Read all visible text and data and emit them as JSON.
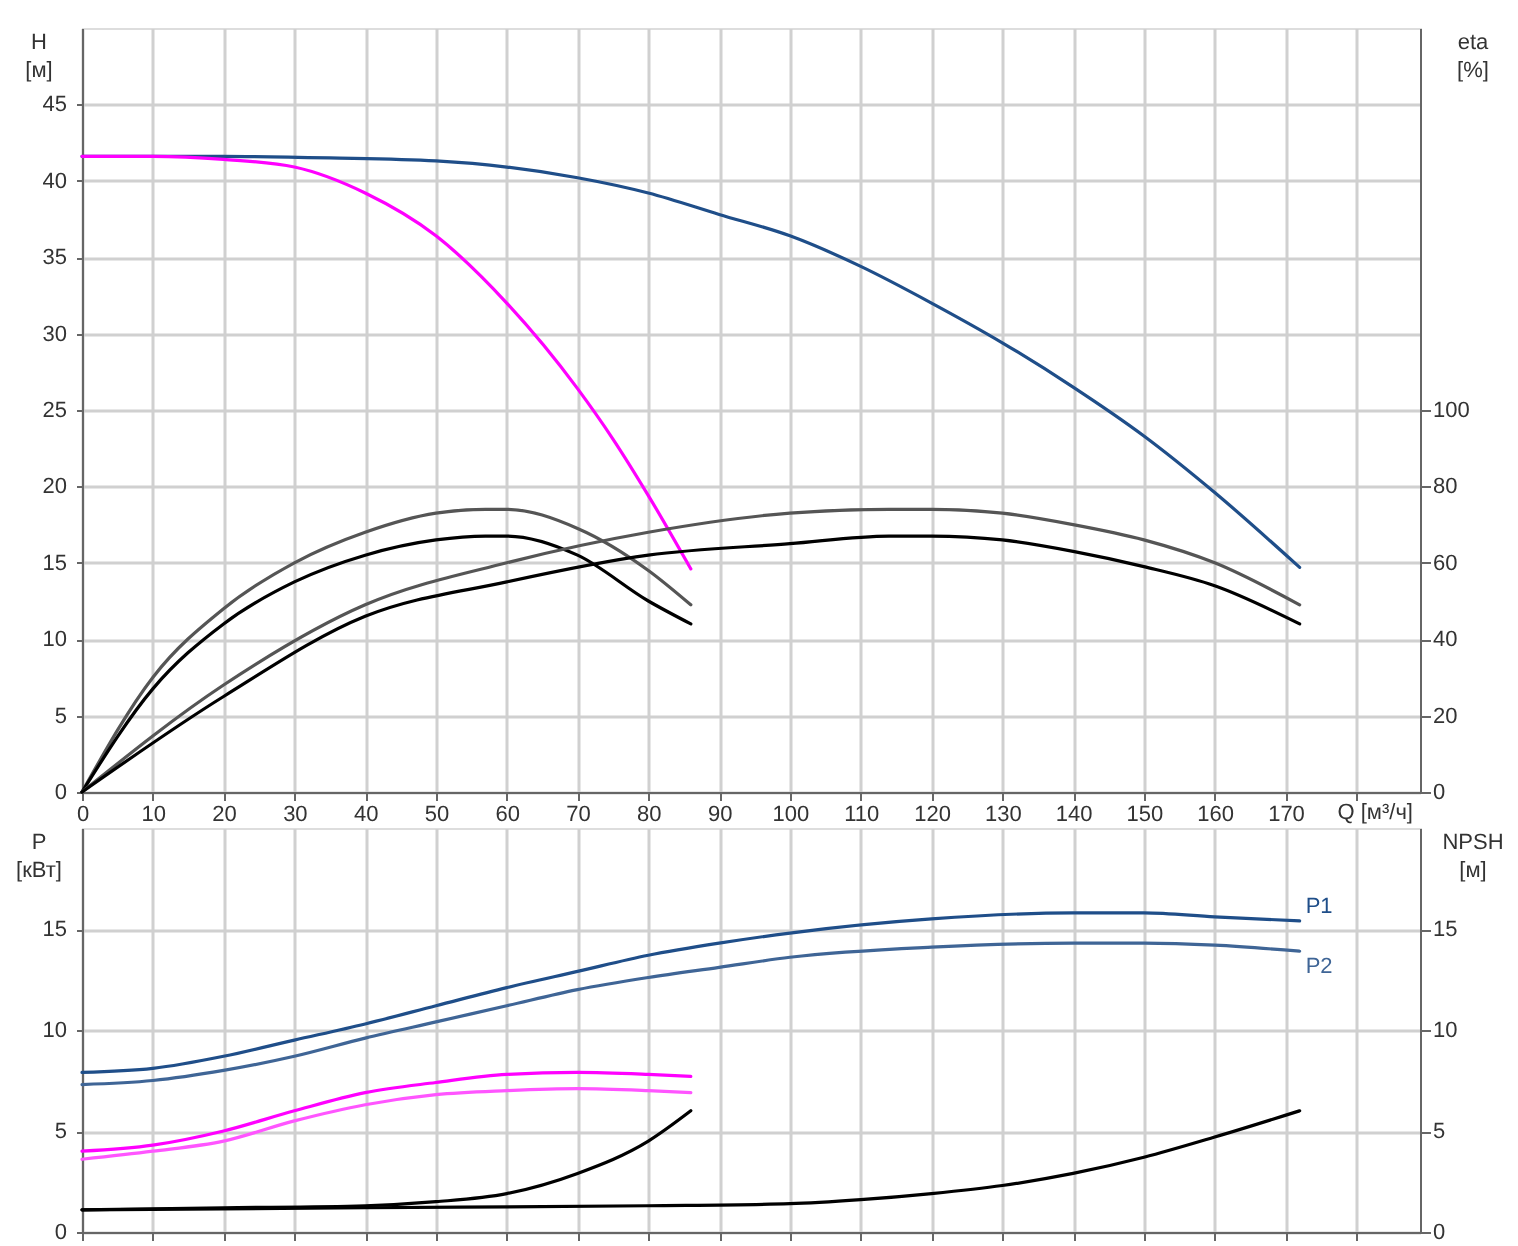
{
  "chart_data": [
    {
      "type": "line",
      "xlabel": "Q [м³/ч]",
      "ylabel": "H [м]",
      "y2label": "eta [%]",
      "xlim": [
        0,
        189
      ],
      "xticks": [
        0,
        10,
        20,
        30,
        40,
        50,
        60,
        70,
        80,
        90,
        100,
        110,
        120,
        130,
        140,
        150,
        160,
        170,
        {
          "value": 180,
          "label": null
        }
      ],
      "ylim": [
        0,
        50
      ],
      "yticks": [
        0,
        5,
        10,
        15,
        20,
        25,
        30,
        35,
        40,
        45
      ],
      "y2lim": [
        0,
        200
      ],
      "y2ticks": [
        0,
        20,
        40,
        60,
        80,
        100
      ],
      "grid": true,
      "series": [
        {
          "color": "#1f4e89",
          "x": [
            0,
            10,
            20,
            35,
            50,
            60,
            70,
            80,
            90,
            100,
            110,
            120,
            130,
            140,
            150,
            160,
            172
          ],
          "values": [
            41.6,
            41.6,
            41.6,
            41.5,
            41.3,
            40.9,
            40.2,
            39.2,
            37.8,
            36.4,
            34.4,
            32.0,
            29.4,
            26.5,
            23.3,
            19.6,
            14.7
          ]
        },
        {
          "color": "#ff00ff",
          "x": [
            0,
            10,
            20,
            30,
            40,
            50,
            60,
            70,
            75,
            80,
            86
          ],
          "values": [
            41.6,
            41.6,
            41.4,
            40.9,
            39.2,
            36.4,
            32.0,
            26.4,
            23.1,
            19.4,
            14.6
          ]
        },
        {
          "color": "#555555",
          "axis": "y2",
          "x": [
            0,
            10,
            20,
            30,
            40,
            50,
            57,
            60,
            70,
            80,
            86
          ],
          "values": [
            0,
            30,
            48,
            60,
            68,
            73,
            74,
            74,
            69,
            58,
            49
          ]
        },
        {
          "color": "#000000",
          "axis": "y2",
          "x": [
            0,
            10,
            20,
            30,
            40,
            50,
            57,
            60,
            70,
            80,
            86
          ],
          "values": [
            0,
            27,
            44,
            55,
            62,
            66,
            67,
            67,
            62,
            50,
            44
          ]
        },
        {
          "color": "#555555",
          "axis": "y2",
          "x": [
            0,
            20,
            40,
            60,
            80,
            100,
            114,
            120,
            130,
            140,
            150,
            160,
            172
          ],
          "values": [
            0,
            28,
            49,
            60,
            68,
            73,
            74,
            74,
            73,
            70,
            66,
            60,
            49
          ]
        },
        {
          "color": "#000000",
          "axis": "y2",
          "x": [
            0,
            20,
            40,
            60,
            80,
            100,
            114,
            120,
            130,
            140,
            150,
            160,
            172
          ],
          "values": [
            0,
            25,
            46,
            55,
            62,
            65,
            67,
            67,
            66,
            63,
            59,
            54,
            44
          ]
        }
      ]
    },
    {
      "type": "line",
      "ylabel": "P [кВт]",
      "y2label": "NPSH [м]",
      "xlim": [
        0,
        189
      ],
      "xticks": [
        0,
        10,
        20,
        30,
        40,
        50,
        60,
        70,
        80,
        90,
        100,
        110,
        120,
        130,
        140,
        150,
        160,
        170,
        {
          "value": 180,
          "label": null
        }
      ],
      "ylim": [
        0,
        20
      ],
      "yticks": [
        0,
        5,
        10,
        15
      ],
      "y2lim": [
        0,
        20
      ],
      "y2ticks": [
        0,
        5,
        10,
        15
      ],
      "grid": true,
      "tick_labels": "y",
      "series": [
        {
          "name": "P1",
          "color": "#1f4e89",
          "x": [
            0,
            10,
            20,
            30,
            40,
            50,
            60,
            70,
            80,
            90,
            100,
            120,
            140,
            150,
            160,
            172
          ],
          "values": [
            7.9,
            8.1,
            8.7,
            9.5,
            10.3,
            11.2,
            12.1,
            12.9,
            13.7,
            14.3,
            14.8,
            15.5,
            15.8,
            15.8,
            15.6,
            15.4
          ]
        },
        {
          "name": "P2",
          "color": "#3f6596",
          "x": [
            0,
            10,
            20,
            30,
            40,
            50,
            60,
            70,
            80,
            90,
            100,
            120,
            140,
            150,
            160,
            172
          ],
          "values": [
            7.3,
            7.5,
            8.0,
            8.7,
            9.6,
            10.4,
            11.2,
            12.0,
            12.6,
            13.1,
            13.6,
            14.1,
            14.3,
            14.3,
            14.2,
            13.9
          ]
        },
        {
          "color": "#ff00ff",
          "x": [
            0,
            10,
            20,
            30,
            40,
            50,
            60,
            70,
            80,
            86
          ],
          "values": [
            4.0,
            4.3,
            5.0,
            6.0,
            6.9,
            7.4,
            7.8,
            7.9,
            7.8,
            7.7
          ]
        },
        {
          "color": "#ff55ff",
          "x": [
            0,
            10,
            20,
            30,
            40,
            50,
            60,
            70,
            80,
            86
          ],
          "values": [
            3.6,
            4.0,
            4.5,
            5.5,
            6.3,
            6.8,
            7.0,
            7.1,
            7.0,
            6.9
          ]
        },
        {
          "color": "#000000",
          "axis": "y2",
          "x": [
            0,
            20,
            40,
            50,
            60,
            70,
            80,
            86
          ],
          "values": [
            1.1,
            1.2,
            1.3,
            1.5,
            1.9,
            2.9,
            4.5,
            6.0
          ]
        },
        {
          "color": "#000000",
          "axis": "y2",
          "x": [
            0,
            40,
            80,
            100,
            110,
            120,
            130,
            140,
            150,
            160,
            172
          ],
          "values": [
            1.1,
            1.2,
            1.3,
            1.4,
            1.6,
            1.9,
            2.3,
            2.9,
            3.7,
            4.7,
            6.0
          ]
        }
      ]
    }
  ]
}
